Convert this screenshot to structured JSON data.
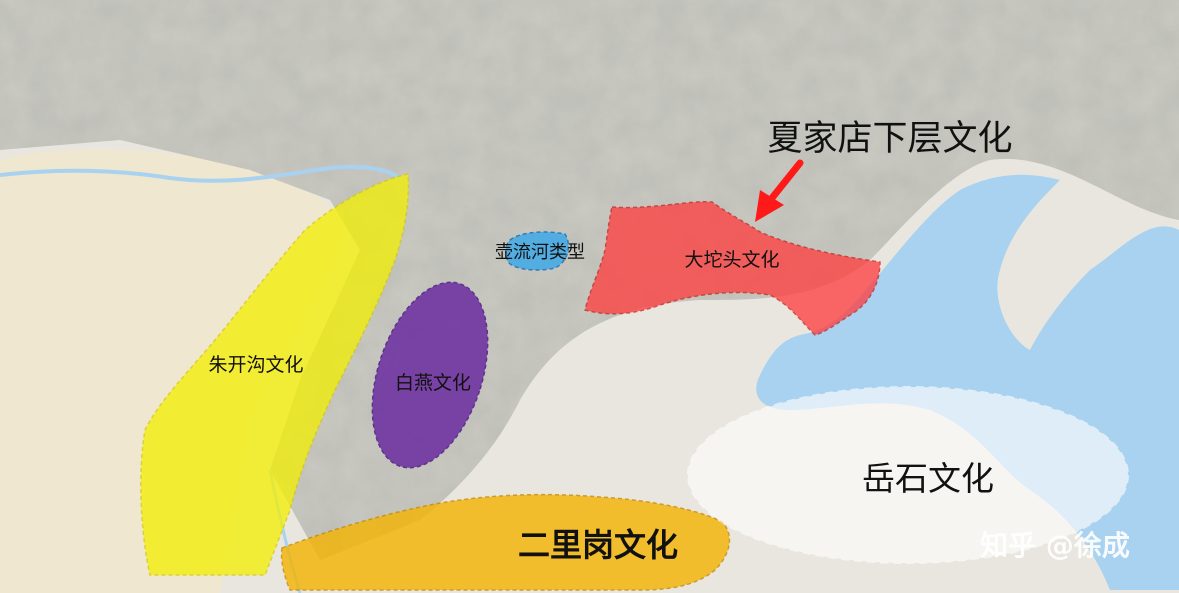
{
  "map": {
    "colors": {
      "land": "#e8e6df",
      "mountain": "#c9c9c2",
      "desert": "#efe7cf",
      "sea": "#a8d2ef",
      "river": "#a8d2ef",
      "zhukaigou": "#f4f000",
      "baiyan": "#6a2ca0",
      "huliuhe": "#3fa9e8",
      "datuotou": "#ff3b3b",
      "erligang": "#f4b400",
      "yueshi": "#ffffff",
      "arrow": "#ff1a1a"
    },
    "regions": [
      {
        "key": "zhukaigou",
        "label": "朱开沟文化"
      },
      {
        "key": "baiyan",
        "label": "白燕文化"
      },
      {
        "key": "huliuhe",
        "label": "壶流河类型"
      },
      {
        "key": "datuotou",
        "label": "大坨头文化"
      },
      {
        "key": "erligang",
        "label": "二里岗文化"
      },
      {
        "key": "yueshi",
        "label": "岳石文化"
      }
    ],
    "annotation": {
      "label": "夏家店下层文化"
    },
    "watermark": "知乎 @徐成"
  }
}
